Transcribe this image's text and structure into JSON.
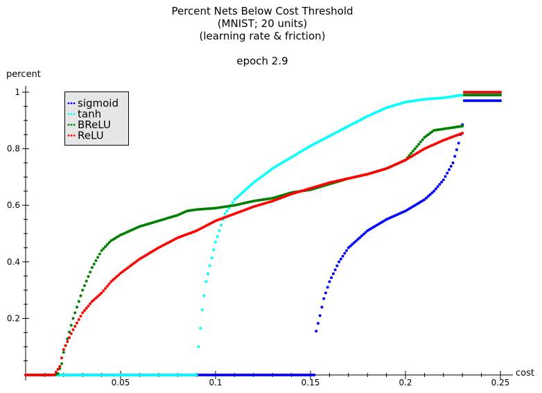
{
  "chart_data": {
    "type": "scatter",
    "title_lines": [
      "Percent Nets Below Cost Threshold",
      "(MNIST; 20 units)",
      "(learning rate & friction)"
    ],
    "subtitle": "epoch 2.9",
    "xlabel": "cost",
    "ylabel": "percent",
    "xlim": [
      0,
      0.25
    ],
    "ylim": [
      0,
      1
    ],
    "x_ticks": [
      0.05,
      0.1,
      0.15,
      0.2,
      0.25
    ],
    "x_tick_labels": [
      "0.05",
      "0.1",
      "0.15",
      "0.2",
      "0.25"
    ],
    "y_ticks": [
      0.2,
      0.4,
      0.6,
      0.8,
      1
    ],
    "y_tick_labels": [
      "0.2",
      "0.4",
      "0.6",
      "0.8",
      "1"
    ],
    "grid": false,
    "legend_position": "top-left",
    "x_step": 0.001,
    "series": [
      {
        "name": "sigmoid",
        "color": "#0000ff",
        "x_start": 0.015,
        "knots": [
          [
            0.015,
            0
          ],
          [
            0.152,
            0
          ],
          [
            0.153,
            0.155
          ],
          [
            0.155,
            0.21
          ],
          [
            0.157,
            0.27
          ],
          [
            0.16,
            0.33
          ],
          [
            0.165,
            0.4
          ],
          [
            0.17,
            0.45
          ],
          [
            0.18,
            0.51
          ],
          [
            0.19,
            0.55
          ],
          [
            0.2,
            0.58
          ],
          [
            0.21,
            0.62
          ],
          [
            0.215,
            0.65
          ],
          [
            0.22,
            0.69
          ],
          [
            0.225,
            0.75
          ],
          [
            0.228,
            0.82
          ],
          [
            0.229,
            0.85
          ],
          [
            0.23,
            0.885
          ],
          [
            0.2305,
            0.965
          ],
          [
            0.231,
            0.97
          ],
          [
            0.25,
            0.97
          ]
        ]
      },
      {
        "name": "tanh",
        "color": "#00ffff",
        "x_start": 0.015,
        "knots": [
          [
            0.015,
            0
          ],
          [
            0.09,
            0
          ],
          [
            0.091,
            0.1
          ],
          [
            0.093,
            0.23
          ],
          [
            0.095,
            0.33
          ],
          [
            0.1,
            0.47
          ],
          [
            0.105,
            0.57
          ],
          [
            0.11,
            0.62
          ],
          [
            0.12,
            0.68
          ],
          [
            0.13,
            0.73
          ],
          [
            0.14,
            0.77
          ],
          [
            0.15,
            0.81
          ],
          [
            0.16,
            0.845
          ],
          [
            0.17,
            0.88
          ],
          [
            0.18,
            0.915
          ],
          [
            0.19,
            0.945
          ],
          [
            0.2,
            0.965
          ],
          [
            0.21,
            0.975
          ],
          [
            0.22,
            0.98
          ],
          [
            0.23,
            0.99
          ],
          [
            0.25,
            0.995
          ]
        ]
      },
      {
        "name": "BReLU",
        "color": "#008000",
        "x_start": 0,
        "knots": [
          [
            0,
            0
          ],
          [
            0.015,
            0
          ],
          [
            0.017,
            0.005
          ],
          [
            0.019,
            0.04
          ],
          [
            0.02,
            0.08
          ],
          [
            0.025,
            0.2
          ],
          [
            0.03,
            0.3
          ],
          [
            0.035,
            0.38
          ],
          [
            0.04,
            0.44
          ],
          [
            0.045,
            0.475
          ],
          [
            0.05,
            0.495
          ],
          [
            0.06,
            0.525
          ],
          [
            0.07,
            0.545
          ],
          [
            0.08,
            0.565
          ],
          [
            0.085,
            0.58
          ],
          [
            0.09,
            0.585
          ],
          [
            0.1,
            0.59
          ],
          [
            0.11,
            0.6
          ],
          [
            0.12,
            0.615
          ],
          [
            0.13,
            0.625
          ],
          [
            0.14,
            0.645
          ],
          [
            0.15,
            0.655
          ],
          [
            0.16,
            0.675
          ],
          [
            0.17,
            0.695
          ],
          [
            0.18,
            0.71
          ],
          [
            0.19,
            0.73
          ],
          [
            0.2,
            0.76
          ],
          [
            0.205,
            0.8
          ],
          [
            0.21,
            0.84
          ],
          [
            0.215,
            0.865
          ],
          [
            0.22,
            0.87
          ],
          [
            0.225,
            0.875
          ],
          [
            0.23,
            0.88
          ],
          [
            0.2305,
            0.99
          ],
          [
            0.25,
            0.99
          ]
        ]
      },
      {
        "name": "ReLU",
        "color": "#ff0000",
        "x_start": 0,
        "knots": [
          [
            0,
            0
          ],
          [
            0.015,
            0
          ],
          [
            0.018,
            0.03
          ],
          [
            0.02,
            0.09
          ],
          [
            0.025,
            0.16
          ],
          [
            0.03,
            0.22
          ],
          [
            0.035,
            0.26
          ],
          [
            0.04,
            0.29
          ],
          [
            0.045,
            0.33
          ],
          [
            0.05,
            0.36
          ],
          [
            0.06,
            0.41
          ],
          [
            0.07,
            0.45
          ],
          [
            0.08,
            0.485
          ],
          [
            0.09,
            0.51
          ],
          [
            0.1,
            0.545
          ],
          [
            0.11,
            0.57
          ],
          [
            0.12,
            0.595
          ],
          [
            0.13,
            0.615
          ],
          [
            0.14,
            0.64
          ],
          [
            0.15,
            0.66
          ],
          [
            0.16,
            0.68
          ],
          [
            0.17,
            0.695
          ],
          [
            0.18,
            0.71
          ],
          [
            0.19,
            0.73
          ],
          [
            0.2,
            0.76
          ],
          [
            0.21,
            0.8
          ],
          [
            0.22,
            0.83
          ],
          [
            0.23,
            0.855
          ],
          [
            0.2305,
            1.0
          ],
          [
            0.25,
            1.0
          ]
        ]
      }
    ]
  }
}
